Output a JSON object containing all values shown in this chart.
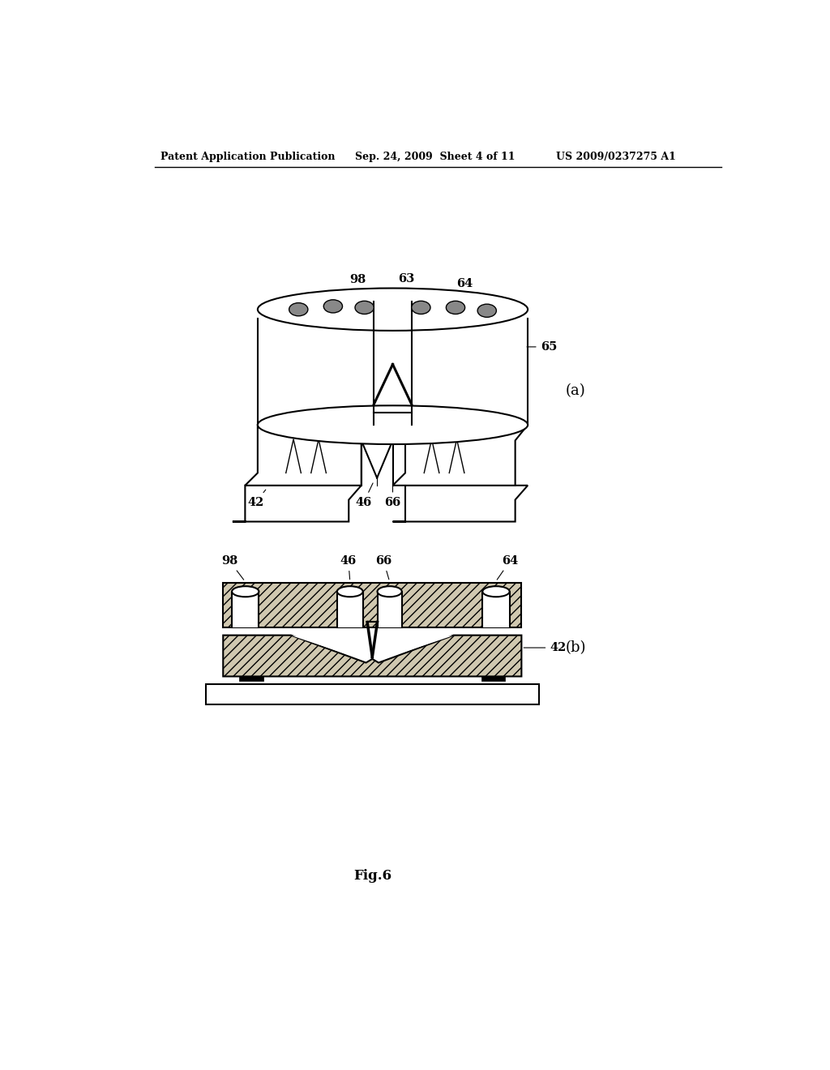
{
  "bg_color": "#ffffff",
  "header_left": "Patent Application Publication",
  "header_center": "Sep. 24, 2009  Sheet 4 of 11",
  "header_right": "US 2009/0237275 A1",
  "fig_label": "Fig.6",
  "label_a": "(a)",
  "label_b": "(b)",
  "lc": "#000000",
  "hatch_fc": "#d0c8b0",
  "hole_fc": "#888888",
  "label_fs": 10.5,
  "header_fs": 9,
  "fig_label_fs": 12
}
